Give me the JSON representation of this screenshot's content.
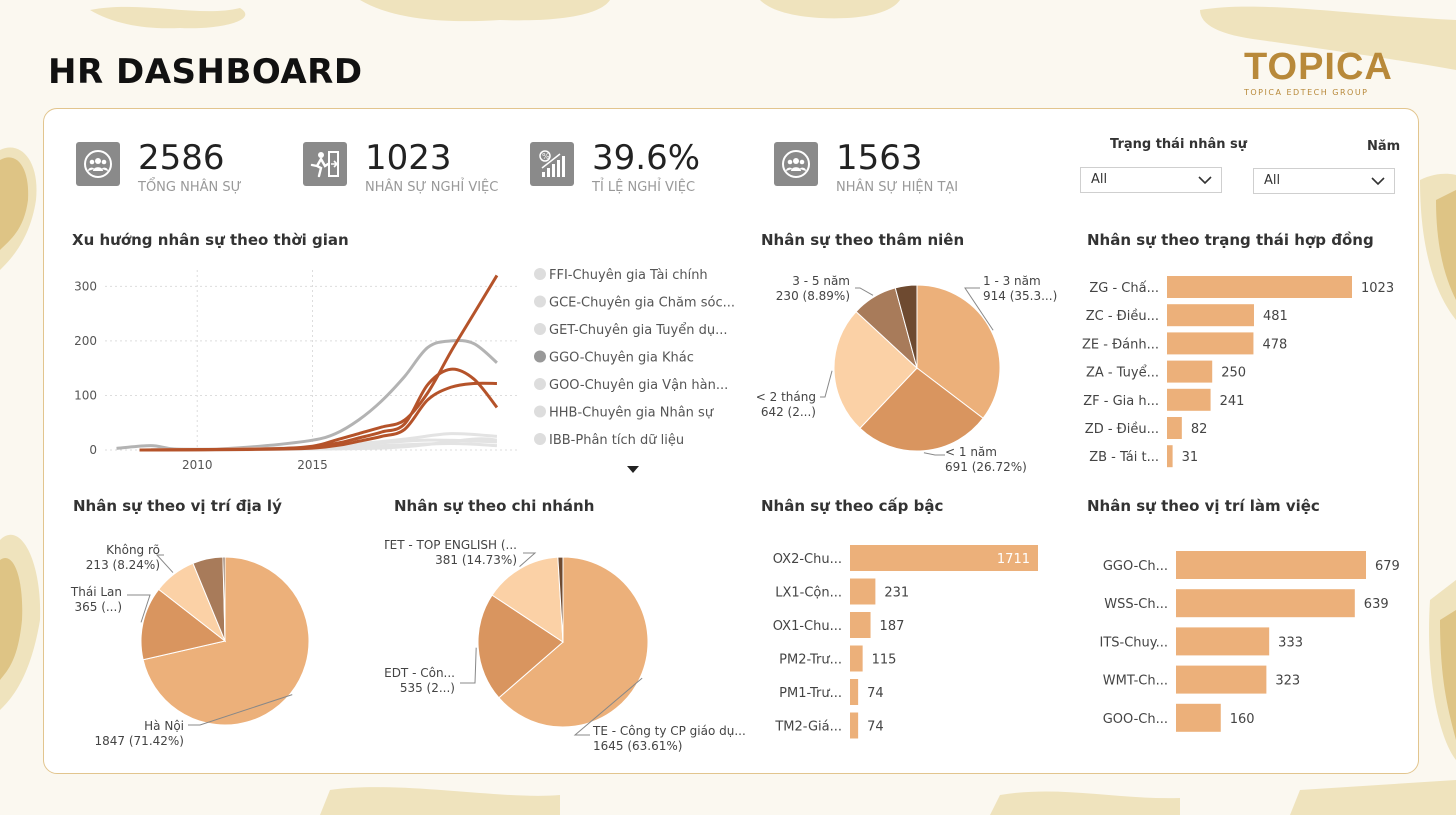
{
  "page": {
    "title": "HR DASHBOARD"
  },
  "logo": {
    "word": "TOPICA",
    "sub": "TOPICA EDTECH GROUP"
  },
  "kpis": [
    {
      "value": "2586",
      "label": "TỔNG NHÂN SỰ",
      "icon": "group-icon"
    },
    {
      "value": "1023",
      "label": "NHÂN SỰ NGHỈ VIỆC",
      "icon": "exit-icon"
    },
    {
      "value": "39.6%",
      "label": "TỈ LỆ NGHỈ VIỆC",
      "icon": "percent-chart-icon"
    },
    {
      "value": "1563",
      "label": "NHÂN SỰ HIỆN TẠI",
      "icon": "group-icon"
    }
  ],
  "filters": {
    "status": {
      "label": "Trạng thái nhân sự",
      "value": "All"
    },
    "year": {
      "label": "Năm",
      "value": "All"
    }
  },
  "colors": {
    "bar": "#ecb07a",
    "line_hl": "#b5532a",
    "line_grey": "#b3b3b3",
    "border": "#e2c58e",
    "map": "#efe3bd"
  },
  "chart_data": [
    {
      "id": "trend",
      "type": "line",
      "title": "Xu hướng nhân sự theo thời gian",
      "xlim": [
        2006,
        2024
      ],
      "ylim": [
        0,
        330
      ],
      "yticks": [
        0,
        100,
        200,
        300
      ],
      "xticks": [
        2010,
        2015
      ],
      "legend": [
        "FFI-Chuyên gia Tài chính",
        "GCE-Chuyên gia Chăm sóc...",
        "GET-Chuyên gia Tuyển dụ...",
        "GGO-Chuyên gia Khác",
        "GOO-Chuyên gia Vận hàn...",
        "HHB-Chuyên gia Nhân sự",
        "IBB-Phân tích dữ liệu"
      ],
      "series": [
        {
          "highlight": false,
          "points": [
            [
              2006.5,
              3
            ],
            [
              2008,
              8
            ],
            [
              2009,
              2
            ],
            [
              2011,
              2
            ],
            [
              2013,
              8
            ],
            [
              2015,
              18
            ],
            [
              2016,
              30
            ],
            [
              2017,
              55
            ],
            [
              2018,
              90
            ],
            [
              2019,
              135
            ],
            [
              2020,
              188
            ],
            [
              2021,
              200
            ],
            [
              2022,
              195
            ],
            [
              2023,
              160
            ]
          ]
        },
        {
          "highlight": false,
          "points": [
            [
              2008,
              1
            ],
            [
              2013,
              3
            ],
            [
              2016,
              8
            ],
            [
              2019,
              20
            ],
            [
              2021,
              30
            ],
            [
              2023,
              25
            ]
          ]
        },
        {
          "highlight": false,
          "points": [
            [
              2008,
              0
            ],
            [
              2014,
              2
            ],
            [
              2017,
              10
            ],
            [
              2020,
              18
            ],
            [
              2023,
              15
            ]
          ]
        },
        {
          "highlight": false,
          "points": [
            [
              2009,
              0
            ],
            [
              2015,
              3
            ],
            [
              2018,
              8
            ],
            [
              2021,
              12
            ],
            [
              2023,
              8
            ]
          ]
        },
        {
          "highlight": false,
          "points": [
            [
              2009,
              0
            ],
            [
              2016,
              2
            ],
            [
              2019,
              6
            ],
            [
              2022,
              20
            ],
            [
              2023,
              18
            ]
          ]
        },
        {
          "highlight": true,
          "points": [
            [
              2007.5,
              0
            ],
            [
              2013,
              2
            ],
            [
              2015,
              7
            ],
            [
              2016,
              18
            ],
            [
              2017,
              30
            ],
            [
              2018,
              42
            ],
            [
              2019,
              55
            ],
            [
              2020,
              105
            ],
            [
              2021,
              180
            ],
            [
              2022,
              250
            ],
            [
              2023,
              320
            ]
          ]
        },
        {
          "highlight": true,
          "points": [
            [
              2007.5,
              0
            ],
            [
              2014,
              3
            ],
            [
              2016,
              12
            ],
            [
              2017,
              22
            ],
            [
              2018,
              33
            ],
            [
              2019,
              48
            ],
            [
              2020,
              120
            ],
            [
              2021,
              148
            ],
            [
              2022,
              130
            ],
            [
              2023,
              78
            ]
          ]
        },
        {
          "highlight": true,
          "points": [
            [
              2007.5,
              0
            ],
            [
              2014,
              2
            ],
            [
              2016,
              8
            ],
            [
              2017,
              16
            ],
            [
              2018,
              25
            ],
            [
              2019,
              38
            ],
            [
              2020,
              92
            ],
            [
              2021,
              115
            ],
            [
              2022,
              122
            ],
            [
              2023,
              122
            ]
          ]
        }
      ]
    },
    {
      "id": "tenure",
      "type": "pie",
      "title": "Nhân sự theo thâm niên",
      "slices": [
        {
          "label": "1 - 3 năm",
          "value": 914,
          "text": "914 (35.3...)",
          "color": "#ecb07a"
        },
        {
          "label": "< 1 năm",
          "value": 691,
          "text": "691 (26.72%)",
          "color": "#d9955f"
        },
        {
          "label": "< 2 tháng",
          "value": 642,
          "text": "642 (2...)",
          "color": "#fbd1a6"
        },
        {
          "label": "3 - 5 năm",
          "value": 230,
          "text": "230 (8.89%)",
          "color": "#a87b5a"
        },
        {
          "label": "",
          "value": 109,
          "text": "",
          "color": "#6e4a30"
        }
      ]
    },
    {
      "id": "contract",
      "type": "bar",
      "title": "Nhân sự theo trạng thái hợp đồng",
      "categories": [
        "ZG - Chấ...",
        "ZC - Điều...",
        "ZE - Đánh...",
        "ZA - Tuyể...",
        "ZF - Gia h...",
        "ZD - Điều...",
        "ZB - Tái t..."
      ],
      "values": [
        1023,
        481,
        478,
        250,
        241,
        82,
        31
      ],
      "max": 1023
    },
    {
      "id": "geo",
      "type": "pie",
      "title": "Nhân sự theo vị trí địa lý",
      "slices": [
        {
          "label": "Hà Nội",
          "value": 1847,
          "text": "1847 (71.42%)",
          "color": "#ecb07a"
        },
        {
          "label": "Thái Lan",
          "value": 365,
          "text": "365 (...)",
          "color": "#d9955f"
        },
        {
          "label": "Không rõ",
          "value": 213,
          "text": "213 (8.24%)",
          "color": "#fbd1a6"
        },
        {
          "label": "",
          "value": 151,
          "text": "",
          "color": "#a87b5a"
        },
        {
          "label": "",
          "value": 10,
          "text": "",
          "color": "#6e4a30"
        }
      ]
    },
    {
      "id": "branch",
      "type": "pie",
      "title": "Nhân sự theo chi nhánh",
      "slices": [
        {
          "label": "TE - Công ty CP giáo dụ...",
          "value": 1645,
          "text": "1645 (63.61%)",
          "color": "#ecb07a"
        },
        {
          "label": "EDT - Côn...",
          "value": 535,
          "text": "535 (2...)",
          "color": "#d9955f"
        },
        {
          "label": "TET - TOP ENGLISH (...",
          "value": 381,
          "text": "381 (14.73%)",
          "color": "#fbd1a6"
        },
        {
          "label": "",
          "value": 25,
          "text": "",
          "color": "#6e4a30"
        }
      ]
    },
    {
      "id": "level",
      "type": "bar",
      "title": "Nhân sự theo cấp bậc",
      "categories": [
        "OX2-Chu...",
        "LX1-Cộn...",
        "OX1-Chu...",
        "PM2-Trư...",
        "PM1-Trư...",
        "TM2-Giá..."
      ],
      "values": [
        1711,
        231,
        187,
        115,
        74,
        74
      ],
      "max": 1711
    },
    {
      "id": "position",
      "type": "bar",
      "title": "Nhân sự theo vị trí làm việc",
      "categories": [
        "GGO-Ch...",
        "WSS-Ch...",
        "ITS-Chuy...",
        "WMT-Ch...",
        "GOO-Ch..."
      ],
      "values": [
        679,
        639,
        333,
        323,
        160
      ],
      "max": 679
    }
  ]
}
